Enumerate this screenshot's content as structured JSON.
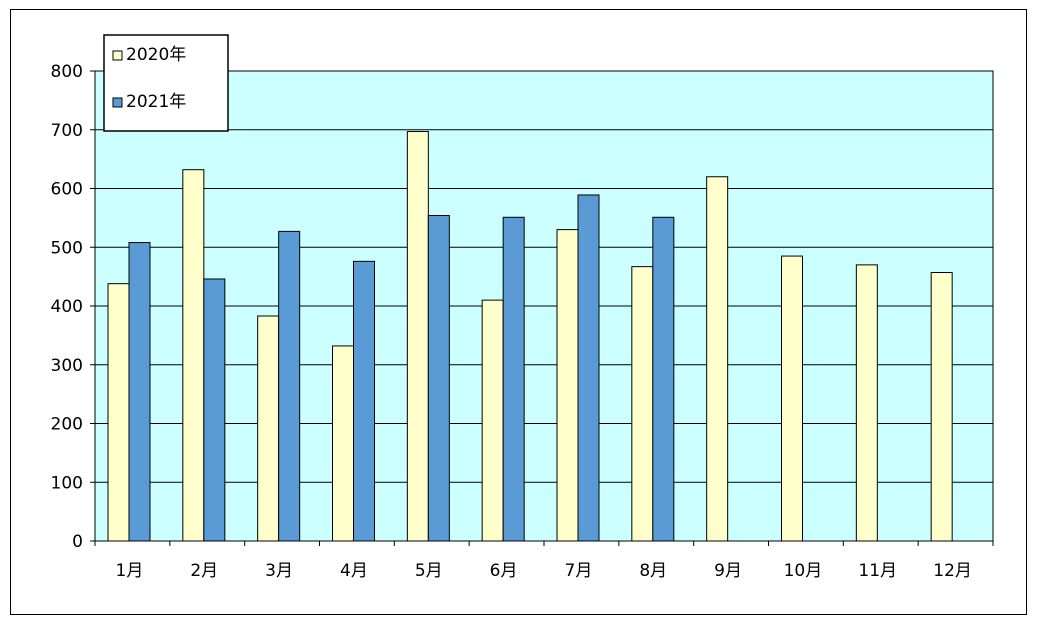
{
  "chart_data": {
    "type": "bar",
    "categories": [
      "1月",
      "2月",
      "3月",
      "4月",
      "5月",
      "6月",
      "7月",
      "8月",
      "9月",
      "10月",
      "11月",
      "12月"
    ],
    "series": [
      {
        "name": "2020年",
        "color": "#ffffcc",
        "values": [
          438,
          632,
          383,
          332,
          697,
          410,
          530,
          467,
          620,
          485,
          470,
          457
        ]
      },
      {
        "name": "2021年",
        "color": "#5b9bd5",
        "values": [
          508,
          446,
          527,
          476,
          554,
          551,
          589,
          551,
          null,
          null,
          null,
          null
        ]
      }
    ],
    "ylim": [
      0,
      800
    ],
    "yticks": [
      0,
      100,
      200,
      300,
      400,
      500,
      600,
      700,
      800
    ],
    "grid": true,
    "plot_background": "#ccffff",
    "legend_position": "top-left"
  }
}
